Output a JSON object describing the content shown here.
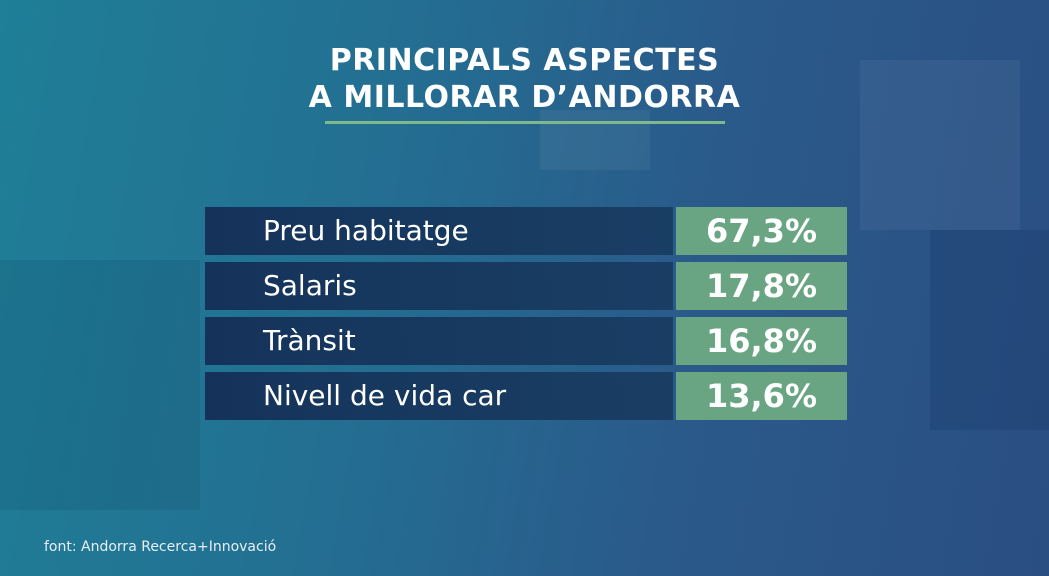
{
  "title": {
    "line1": "PRINCIPALS ASPECTES",
    "line2": "A MILLORAR D’ANDORRA"
  },
  "chart_data": {
    "type": "table",
    "title": "PRINCIPALS ASPECTES A MILLORAR D’ANDORRA",
    "rows": [
      {
        "label": "Preu habitatge",
        "value": 67.3,
        "display": "67,3%"
      },
      {
        "label": "Salaris",
        "value": 17.8,
        "display": "17,8%"
      },
      {
        "label": "Trànsit",
        "value": 16.8,
        "display": "16,8%"
      },
      {
        "label": "Nivell de vida car",
        "value": 13.6,
        "display": "13,6%"
      }
    ],
    "unit": "%"
  },
  "source": "font: Andorra Recerca+Innovació",
  "colors": {
    "background": "#236f92",
    "label_band": "#16375c",
    "value_band": "#6aa583",
    "accent_rule": "#7fb88a",
    "text": "#ffffff"
  }
}
